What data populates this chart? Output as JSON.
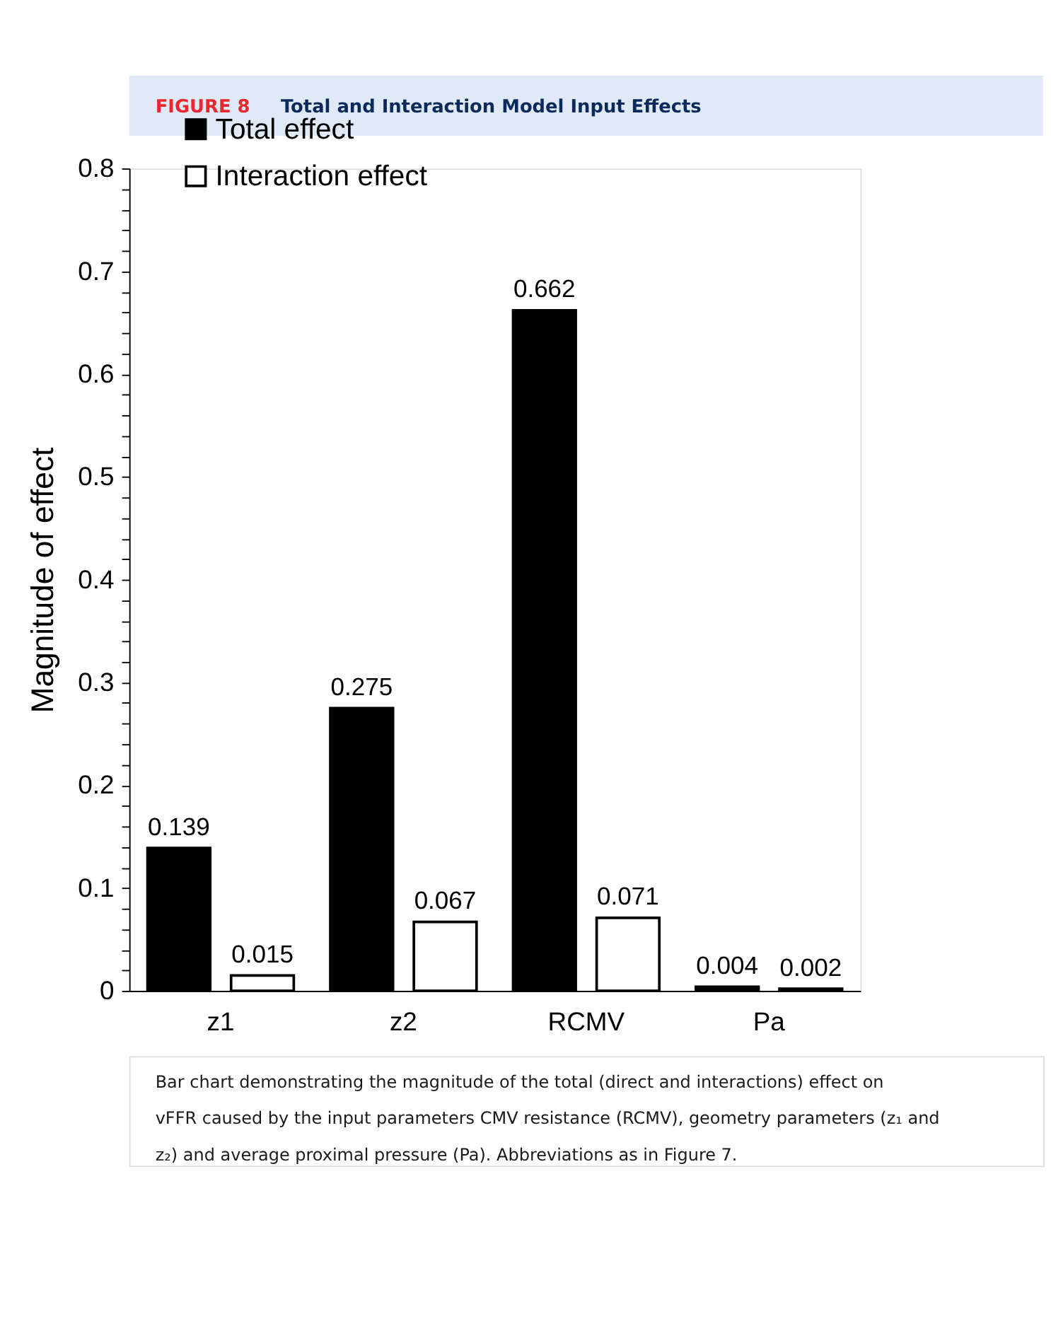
{
  "chart_data": {
    "type": "bar",
    "title": "FIGURE 8",
    "subtitle": "Total and Interaction Model Input Effects",
    "ylabel": "Magnitude of effect",
    "categories": [
      "z1",
      "z2",
      "RCMV",
      "Pa"
    ],
    "series": [
      {
        "name": "Total effect",
        "color": "#000000",
        "values": [
          0.139,
          0.275,
          0.662,
          0.004
        ]
      },
      {
        "name": "Interaction effect",
        "color": "#ffffff",
        "values": [
          0.015,
          0.067,
          0.071,
          0.002
        ]
      }
    ],
    "ylim": [
      0,
      0.8
    ],
    "yticks": [
      0,
      {
        "value": 0.02,
        "label": null
      },
      {
        "value": 0.04,
        "label": null
      },
      {
        "value": 0.06,
        "label": null
      },
      {
        "value": 0.08,
        "label": null
      },
      0.1,
      {
        "value": 0.12,
        "label": null
      },
      {
        "value": 0.14,
        "label": null
      },
      {
        "value": 0.16,
        "label": null
      },
      {
        "value": 0.18,
        "label": null
      },
      0.2,
      {
        "value": 0.22,
        "label": null
      },
      {
        "value": 0.24,
        "label": null
      },
      {
        "value": 0.26,
        "label": null
      },
      {
        "value": 0.28,
        "label": null
      },
      0.3,
      {
        "value": 0.32,
        "label": null
      },
      {
        "value": 0.34,
        "label": null
      },
      {
        "value": 0.36,
        "label": null
      },
      {
        "value": 0.38,
        "label": null
      },
      0.4,
      {
        "value": 0.42,
        "label": null
      },
      {
        "value": 0.44,
        "label": null
      },
      {
        "value": 0.46,
        "label": null
      },
      {
        "value": 0.48,
        "label": null
      },
      0.5,
      {
        "value": 0.52,
        "label": null
      },
      {
        "value": 0.54,
        "label": null
      },
      {
        "value": 0.56,
        "label": null
      },
      {
        "value": 0.58,
        "label": null
      },
      0.6,
      {
        "value": 0.62,
        "label": null
      },
      {
        "value": 0.64,
        "label": null
      },
      {
        "value": 0.66,
        "label": null
      },
      {
        "value": 0.68,
        "label": null
      },
      0.7,
      {
        "value": 0.72,
        "label": null
      },
      {
        "value": 0.74,
        "label": null
      },
      {
        "value": 0.76,
        "label": null
      },
      {
        "value": 0.78,
        "label": null
      },
      0.8
    ],
    "data_labels": true,
    "grid": false,
    "legend": "top left",
    "annotations": [
      "Bar chart demonstrating the magnitude of the total (direct and interactions) effect on vFFR caused by the input parameters CMV resistance (RCMV), geometry parameters (z₁ and z₂) and average proximal pressure (Pa). Abbreviations as in Figure 7."
    ]
  }
}
